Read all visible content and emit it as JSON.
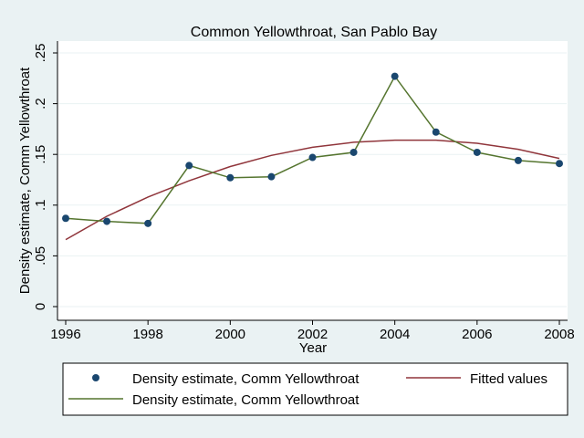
{
  "chart_data": {
    "type": "line",
    "title": "Common Yellowthroat, San Pablo Bay",
    "xlabel": "Year",
    "ylabel": "Density estimate, Comm Yellowthroat",
    "xlim": [
      1996,
      2008
    ],
    "ylim": [
      0,
      0.25
    ],
    "x_ticks": [
      1996,
      1998,
      2000,
      2002,
      2004,
      2006,
      2008
    ],
    "x_tick_labels": [
      "1996",
      "1998",
      "2000",
      "2002",
      "2004",
      "2006",
      "2008"
    ],
    "y_ticks": [
      0,
      0.05,
      0.1,
      0.15,
      0.2,
      0.25
    ],
    "y_tick_labels": [
      "0",
      ".05",
      ".1",
      ".15",
      ".2",
      ".25"
    ],
    "grid": true,
    "legend_position": "bottom",
    "colors": {
      "points": "#1a476f",
      "fitted": "#90353b",
      "line": "#55752f",
      "plot_bg": "#ffffff",
      "outer_bg": "#eaf2f3",
      "grid": "#eaf2f3"
    },
    "series": [
      {
        "name": "Density estimate, Comm Yellowthroat",
        "kind": "scatter",
        "x": [
          1996,
          1997,
          1998,
          1999,
          2000,
          2001,
          2002,
          2003,
          2004,
          2005,
          2006,
          2007,
          2008
        ],
        "y": [
          0.087,
          0.084,
          0.082,
          0.139,
          0.127,
          0.128,
          0.147,
          0.152,
          0.227,
          0.172,
          0.152,
          0.144,
          0.141
        ]
      },
      {
        "name": "Fitted values",
        "kind": "line",
        "x": [
          1996,
          1997,
          1998,
          1999,
          2000,
          2001,
          2002,
          2003,
          2004,
          2005,
          2006,
          2007,
          2008
        ],
        "y": [
          0.066,
          0.089,
          0.108,
          0.124,
          0.138,
          0.149,
          0.157,
          0.162,
          0.164,
          0.164,
          0.161,
          0.155,
          0.146
        ]
      },
      {
        "name": "Density estimate, Comm Yellowthroat",
        "kind": "line",
        "x": [
          1996,
          1997,
          1998,
          1999,
          2000,
          2001,
          2002,
          2003,
          2004,
          2005,
          2006,
          2007,
          2008
        ],
        "y": [
          0.087,
          0.084,
          0.082,
          0.139,
          0.127,
          0.128,
          0.147,
          0.152,
          0.227,
          0.172,
          0.152,
          0.144,
          0.141
        ]
      }
    ]
  }
}
